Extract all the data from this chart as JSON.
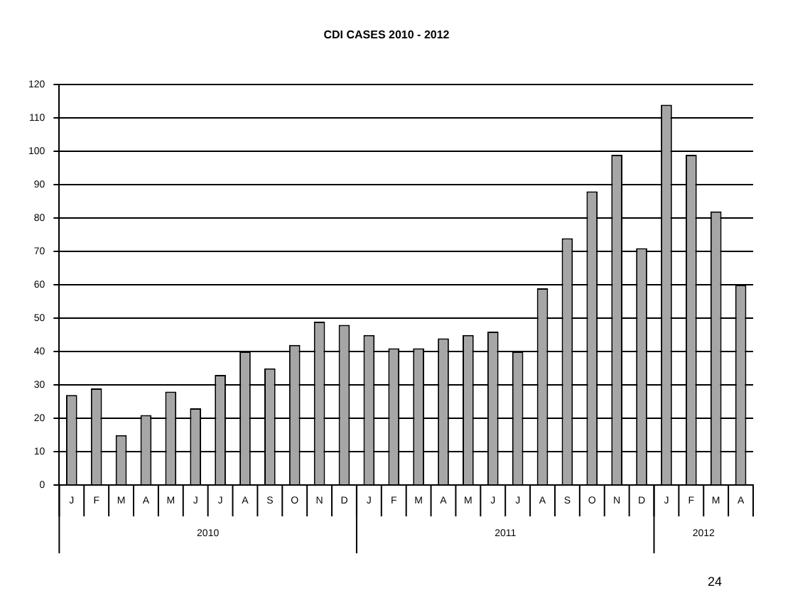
{
  "chart_data": {
    "type": "bar",
    "title": "CDI CASES 2010 - 2012",
    "categories": [
      "J",
      "F",
      "M",
      "A",
      "M",
      "J",
      "J",
      "A",
      "S",
      "O",
      "N",
      "D",
      "J",
      "F",
      "M",
      "A",
      "M",
      "J",
      "J",
      "A",
      "S",
      "O",
      "N",
      "D",
      "J",
      "F",
      "M",
      "A"
    ],
    "values": [
      27,
      29,
      15,
      21,
      28,
      23,
      33,
      40,
      35,
      42,
      49,
      48,
      45,
      41,
      41,
      44,
      45,
      46,
      40,
      59,
      74,
      88,
      99,
      71,
      114,
      99,
      82,
      60
    ],
    "color": "#a6a6a6",
    "ylim": [
      0,
      120
    ],
    "yticks": [
      0,
      10,
      20,
      30,
      40,
      50,
      60,
      70,
      80,
      90,
      100,
      110,
      120
    ],
    "grid": "y",
    "annotations": [
      "2010",
      "2011",
      "2012",
      "24"
    ]
  }
}
